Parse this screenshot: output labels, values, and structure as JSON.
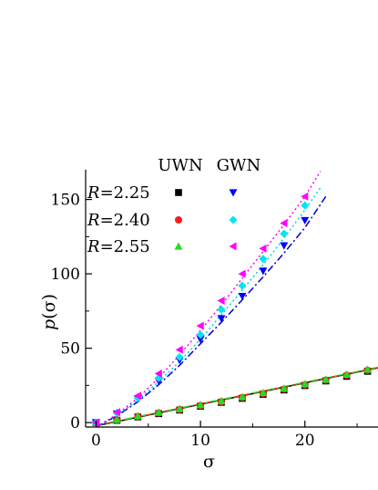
{
  "chart_data": {
    "type": "scatter",
    "title": "",
    "xlabel": "σ",
    "ylabel": "p(σ)",
    "xlim": [
      -1,
      27
    ],
    "ylim": [
      -3,
      170
    ],
    "x_ticks": [
      0,
      10,
      20
    ],
    "y_ticks": [
      0,
      50,
      100,
      150
    ],
    "grid": false,
    "legend": {
      "placement": "top-left",
      "column_headers": [
        "UWN",
        "GWN"
      ],
      "rows": [
        {
          "label_var": "R",
          "label_value": "=2.25"
        },
        {
          "label_var": "R",
          "label_value": "=2.40"
        },
        {
          "label_var": "R",
          "label_value": "=2.55"
        }
      ]
    },
    "series": [
      {
        "name": "UWN R=2.25",
        "marker": "square",
        "color": "#000000",
        "x": [
          0,
          2,
          4,
          6,
          8,
          10,
          12,
          14,
          16,
          18,
          20,
          22,
          24,
          26
        ],
        "y": [
          0,
          1.5,
          3.8,
          6.0,
          8.4,
          11.0,
          13.6,
          16.3,
          19.0,
          21.9,
          24.9,
          28.0,
          31.1,
          34.5
        ]
      },
      {
        "name": "UWN R=2.40",
        "marker": "circle",
        "color": "#ff1a1a",
        "x": [
          0,
          2,
          4,
          6,
          8,
          10,
          12,
          14,
          16,
          18,
          20,
          22,
          24,
          26
        ],
        "y": [
          0,
          1.8,
          4.1,
          6.4,
          8.8,
          11.4,
          14.0,
          16.8,
          19.5,
          22.4,
          25.4,
          28.5,
          31.8,
          35.1
        ]
      },
      {
        "name": "UWN R=2.55",
        "marker": "triangle-up",
        "color": "#22dd22",
        "x": [
          0,
          2,
          4,
          6,
          8,
          10,
          12,
          14,
          16,
          18,
          20,
          22,
          24,
          26
        ],
        "y": [
          0,
          2.0,
          4.4,
          6.8,
          9.2,
          11.8,
          14.5,
          17.2,
          20.0,
          22.9,
          25.9,
          29.0,
          32.3,
          35.7
        ]
      },
      {
        "name": "GWN R=2.25",
        "marker": "triangle-down",
        "color": "#0000ff",
        "x": [
          0,
          2,
          4,
          6,
          8,
          10,
          12,
          14,
          16,
          18,
          20
        ],
        "y": [
          0,
          6,
          16,
          28,
          42,
          56,
          70,
          85,
          102,
          119,
          136
        ]
      },
      {
        "name": "GWN R=2.40",
        "marker": "diamond",
        "color": "#00e5ee",
        "x": [
          0,
          2,
          4,
          6,
          8,
          10,
          12,
          14,
          16,
          18,
          20
        ],
        "y": [
          0,
          6.5,
          16.5,
          30,
          44,
          59,
          76,
          92,
          110,
          127,
          146
        ]
      },
      {
        "name": "GWN R=2.55",
        "marker": "triangle-left",
        "color": "#ff00ff",
        "x": [
          0,
          2,
          4,
          6,
          8,
          10,
          12,
          14,
          16,
          18,
          20
        ],
        "y": [
          0,
          7,
          18,
          33,
          49,
          65,
          82,
          100,
          117,
          134,
          152
        ]
      }
    ],
    "fit_lines": [
      {
        "name": "UWN fit R=2.25",
        "color": "#000000",
        "dash": "solid",
        "x": [
          0,
          27
        ],
        "y": [
          -2.2,
          36.8
        ]
      },
      {
        "name": "UWN fit R=2.40",
        "color": "#ff1a1a",
        "dash": "dash",
        "x": [
          0,
          27
        ],
        "y": [
          -2.0,
          37.0
        ]
      },
      {
        "name": "UWN fit R=2.55",
        "color": "#22dd22",
        "dash": "dashdot",
        "x": [
          0,
          27
        ],
        "y": [
          -1.8,
          37.2
        ]
      },
      {
        "name": "GWN fit R=2.25",
        "color": "#0000cc",
        "dash": "dashdot",
        "x": [
          0,
          2,
          4,
          6,
          8,
          10,
          12,
          14,
          16,
          18,
          20,
          22
        ],
        "y": [
          -3,
          4.5,
          14,
          25.5,
          38.5,
          53,
          67.5,
          82.5,
          98,
          114,
          131,
          152
        ]
      },
      {
        "name": "GWN fit R=2.40",
        "color": "#00cfe8",
        "dash": "dot",
        "x": [
          0,
          2,
          4,
          6,
          8,
          10,
          12,
          14,
          16,
          18,
          20,
          21.5
        ],
        "y": [
          -3,
          5,
          15,
          27.5,
          41,
          56,
          72.5,
          89,
          106,
          124,
          143,
          158
        ]
      },
      {
        "name": "GWN fit R=2.55",
        "color": "#ff00ff",
        "dash": "dot",
        "x": [
          0,
          2,
          4,
          6,
          8,
          10,
          12,
          14,
          16,
          18,
          20,
          21.5
        ],
        "y": [
          -3,
          5.5,
          16.5,
          30,
          45.5,
          62,
          79,
          97,
          115,
          133,
          152,
          169
        ]
      }
    ]
  }
}
